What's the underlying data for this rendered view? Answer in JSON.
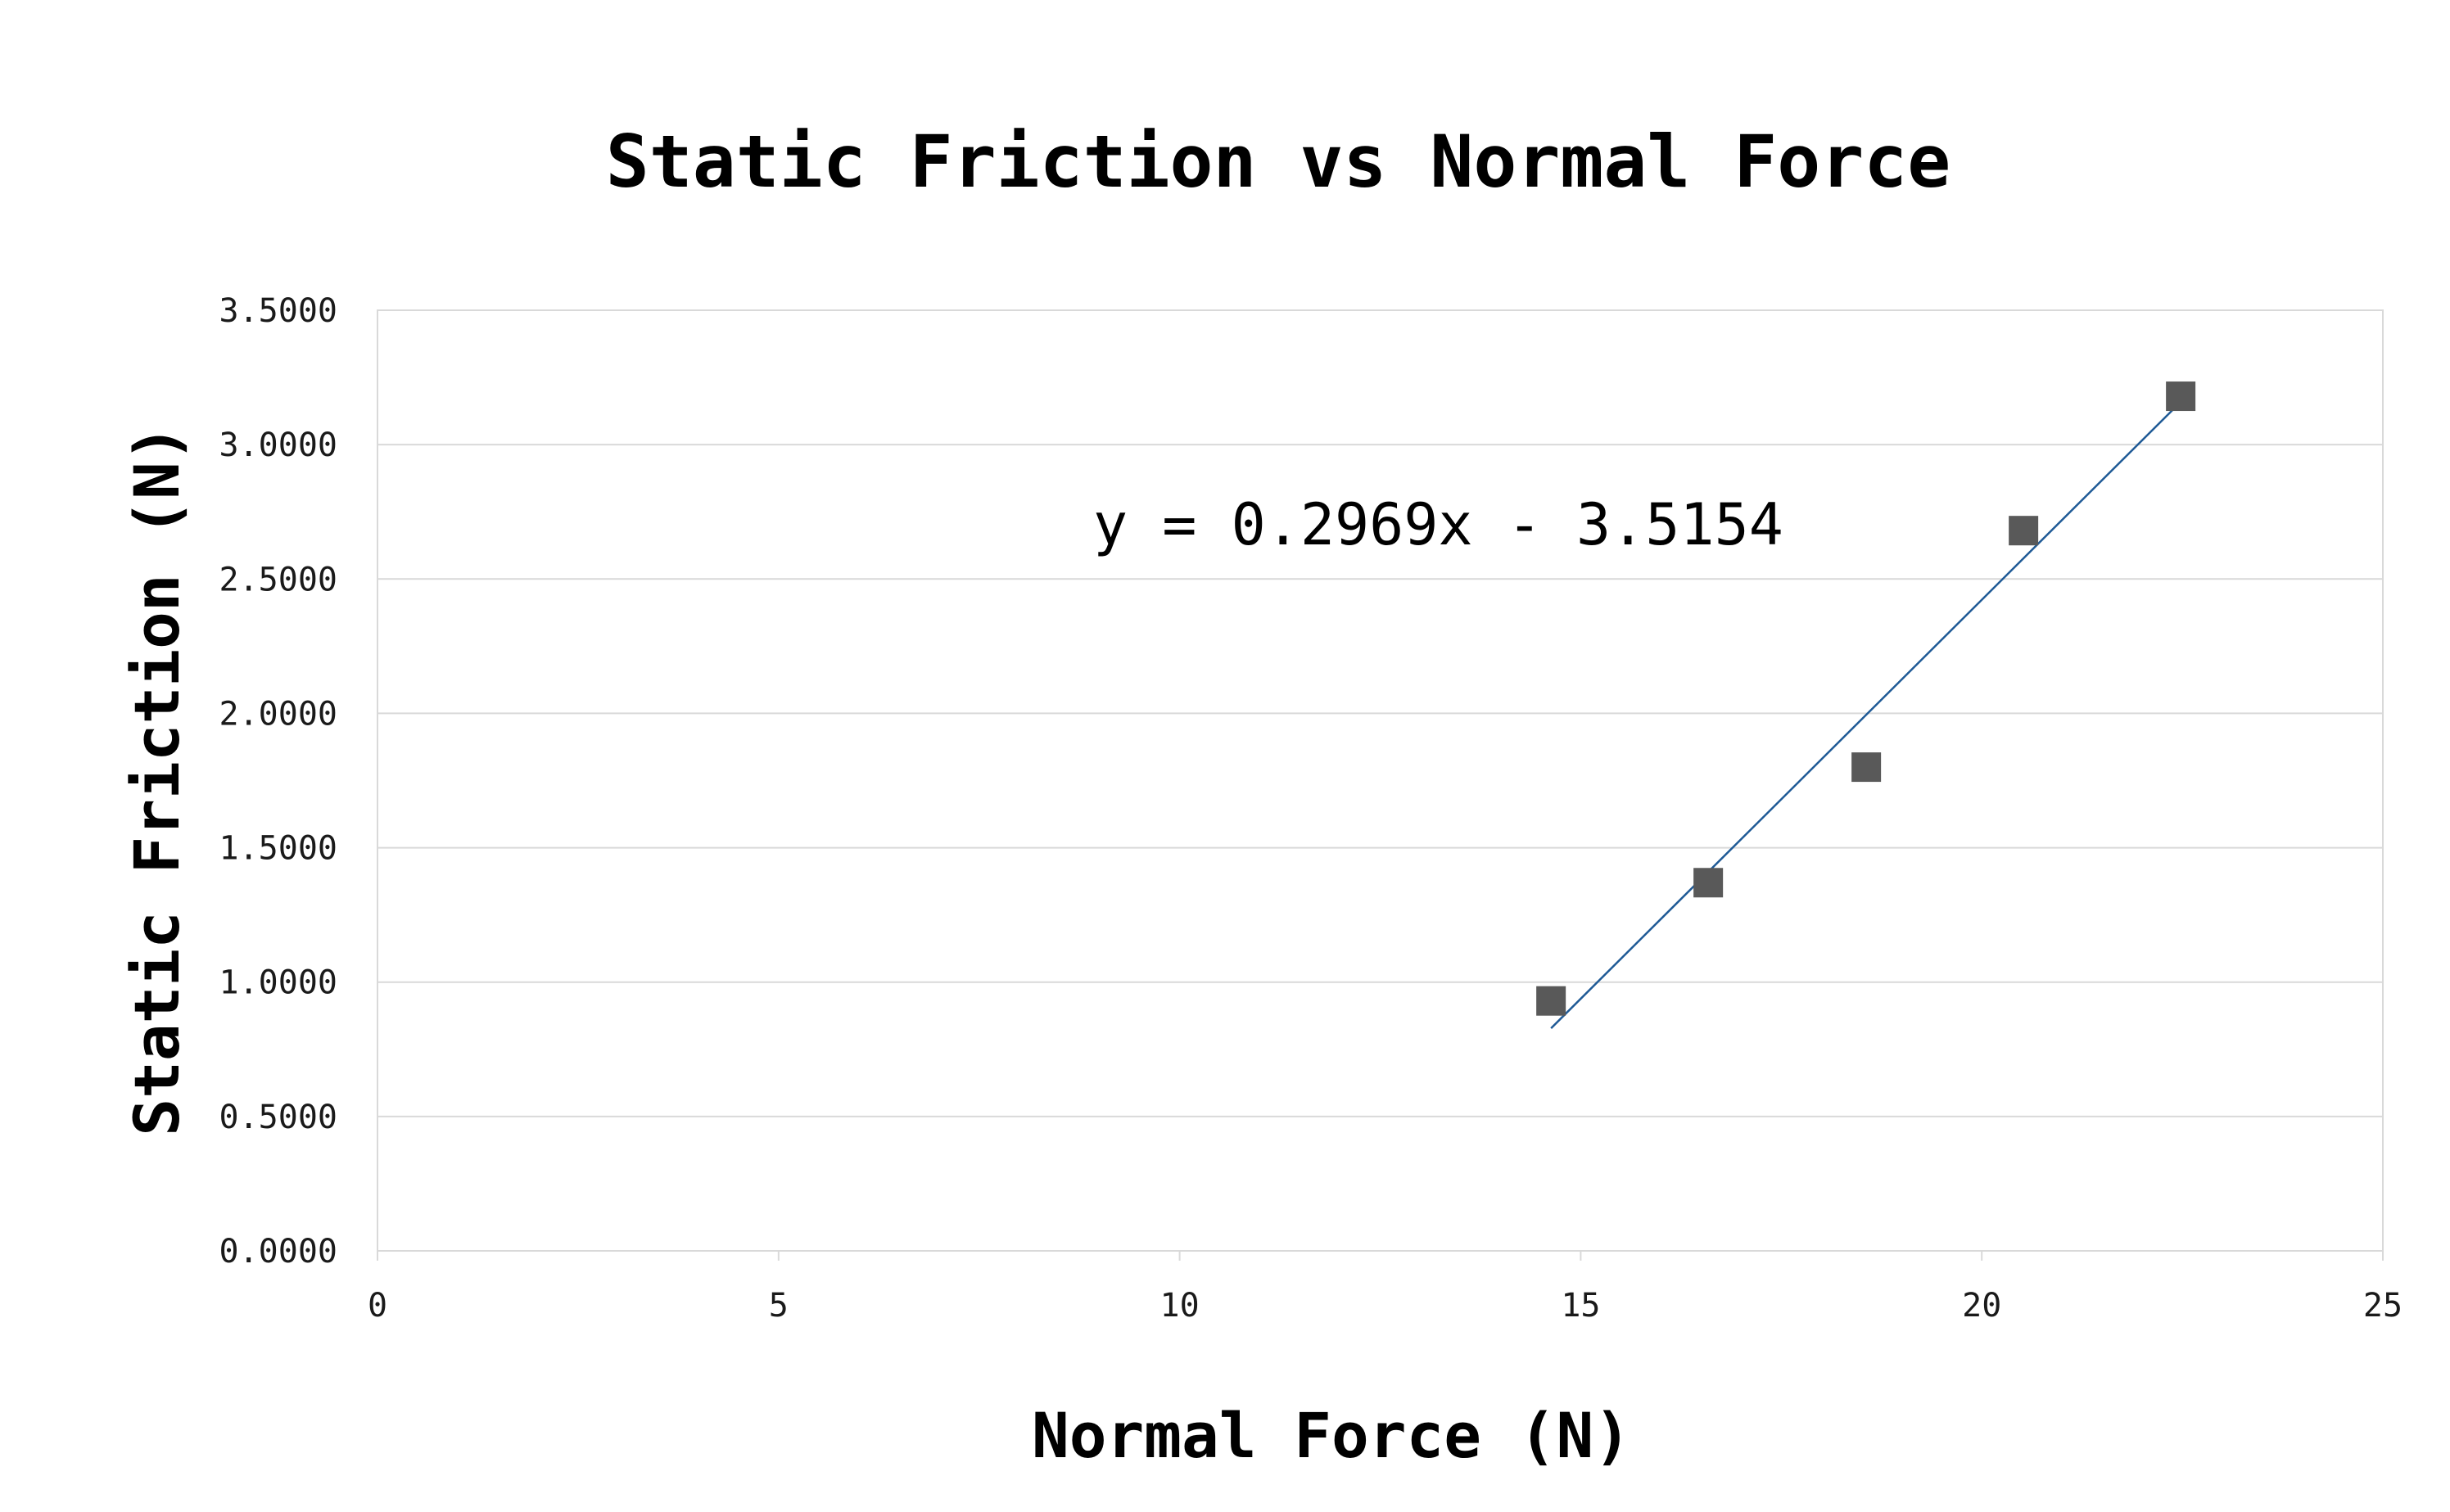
{
  "chart_data": {
    "type": "scatter",
    "title": "Static Friction vs Normal Force",
    "xlabel": "Normal Force (N)",
    "ylabel": "Static Friction (N)",
    "xlim": [
      0,
      25
    ],
    "ylim": [
      0,
      3.5
    ],
    "x_ticks": [
      {
        "value": 0,
        "label": "0"
      },
      {
        "value": 5,
        "label": "5"
      },
      {
        "value": 10,
        "label": "10"
      },
      {
        "value": 15,
        "label": "15"
      },
      {
        "value": 20,
        "label": "20"
      },
      {
        "value": 25,
        "label": "25"
      }
    ],
    "y_ticks": [
      {
        "value": 0,
        "label": "0.0000"
      },
      {
        "value": 0.5,
        "label": "0.5000"
      },
      {
        "value": 1.0,
        "label": "1.0000"
      },
      {
        "value": 1.5,
        "label": "1.5000"
      },
      {
        "value": 2.0,
        "label": "2.0000"
      },
      {
        "value": 2.5,
        "label": "2.5000"
      },
      {
        "value": 3.0,
        "label": "3.0000"
      },
      {
        "value": 3.5,
        "label": "3.5000"
      }
    ],
    "grid": true,
    "legend": "none",
    "series": [
      {
        "marker": "square",
        "color": "#595959",
        "points": [
          {
            "x": 14.63,
            "y": 0.93
          },
          {
            "x": 16.59,
            "y": 1.37
          },
          {
            "x": 18.56,
            "y": 1.8
          },
          {
            "x": 20.52,
            "y": 2.68
          },
          {
            "x": 22.48,
            "y": 3.18
          }
        ]
      }
    ],
    "trendline": {
      "type": "linear",
      "slope": 0.2969,
      "intercept": -3.5154,
      "x_start": 14.63,
      "x_end": 22.48,
      "color": "#1f5a96",
      "equation_label": "y = 0.2969x - 3.5154"
    }
  }
}
